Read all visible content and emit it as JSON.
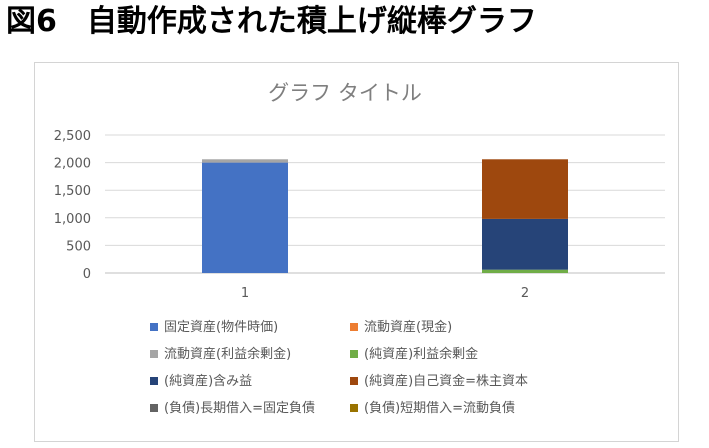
{
  "heading": "図6　自動作成された積上げ縦棒グラフ",
  "chart_data": {
    "type": "bar",
    "stacked": true,
    "title": "グラフ タイトル",
    "categories": [
      "1",
      "2"
    ],
    "ylim": [
      0,
      2500
    ],
    "yticks": [
      "2,500",
      "2,000",
      "1,500",
      "1,000",
      "500",
      "0"
    ],
    "ytick_values": [
      2500,
      2000,
      1500,
      1000,
      500,
      0
    ],
    "grid": true,
    "legend_position": "bottom",
    "series": [
      {
        "name": "固定資産(物件時価)",
        "color": "#4472C4",
        "values": [
          2000,
          0
        ]
      },
      {
        "name": "流動資産(現金)",
        "color": "#ED7D31",
        "values": [
          0,
          0
        ]
      },
      {
        "name": "流動資産(利益余剰金)",
        "color": "#A5A5A5",
        "values": [
          60,
          0
        ]
      },
      {
        "name": "(純資産)利益余剰金",
        "color": "#70AD47",
        "values": [
          0,
          60
        ]
      },
      {
        "name": "(純資産)含み益",
        "color": "#264478",
        "values": [
          0,
          920
        ]
      },
      {
        "name": "(純資産)自己資金=株主資本",
        "color": "#9E480E",
        "values": [
          0,
          1080
        ]
      },
      {
        "name": "(負債)長期借入=固定負債",
        "color": "#636363",
        "values": [
          0,
          0
        ]
      },
      {
        "name": "(負債)短期借入=流動負債",
        "color": "#997300",
        "values": [
          0,
          0
        ]
      }
    ]
  }
}
